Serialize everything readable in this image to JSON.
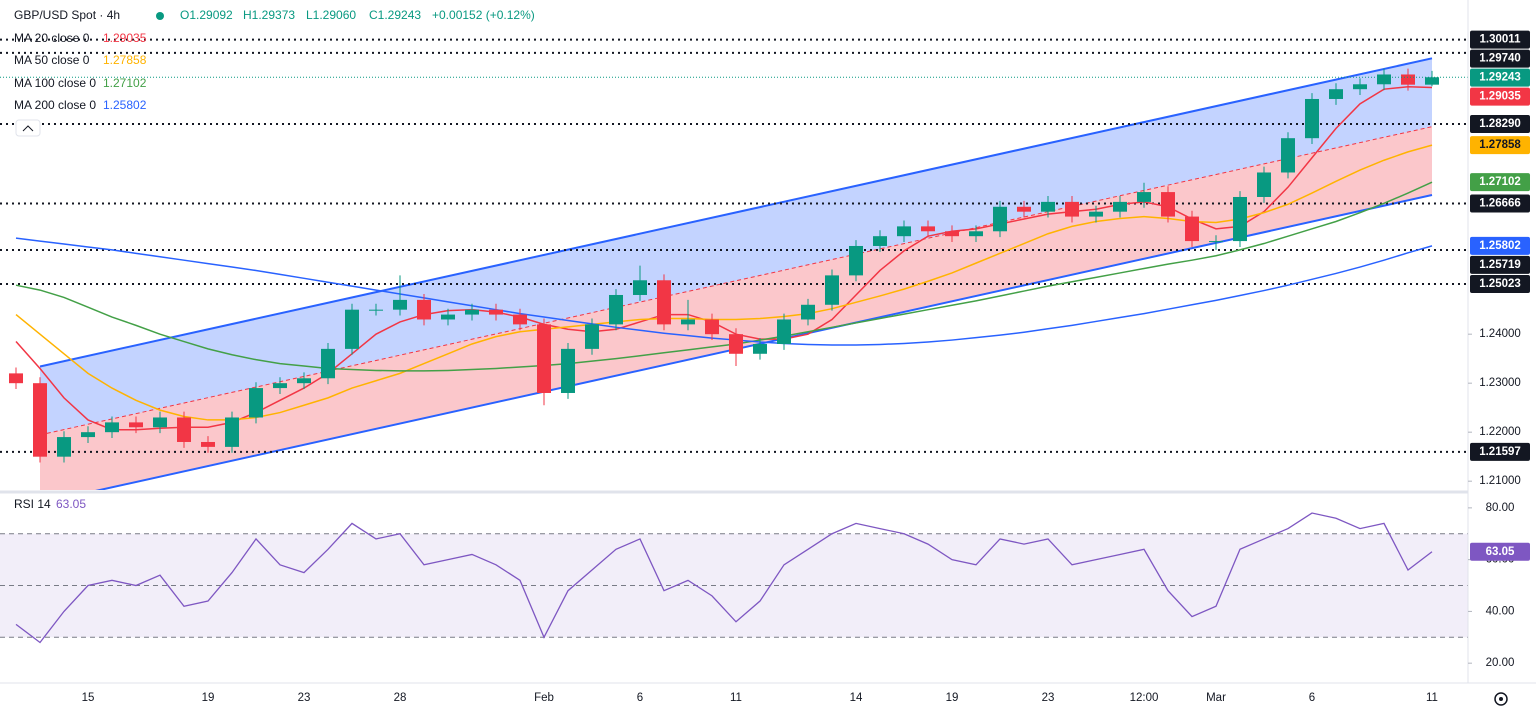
{
  "chart_data": {
    "type": "candlestick",
    "title": "GBP/USD Spot · 4h",
    "ohlc_text": [
      "O1.29092",
      "H1.29373",
      "L1.29060",
      "C1.29243",
      "+0.00152 (+0.12%)"
    ],
    "categories": [
      null,
      null,
      null,
      "15",
      null,
      null,
      null,
      null,
      "19",
      null,
      null,
      null,
      "23",
      null,
      null,
      null,
      "28",
      null,
      null,
      null,
      null,
      null,
      "Feb",
      null,
      null,
      null,
      "6",
      null,
      null,
      null,
      "11",
      null,
      null,
      null,
      null,
      "14",
      null,
      null,
      null,
      "19",
      null,
      null,
      null,
      "23",
      null,
      null,
      null,
      "12:00",
      null,
      null,
      "Mar",
      null,
      null,
      null,
      "6",
      null,
      null,
      null,
      null,
      "11"
    ],
    "open": [
      1.232,
      1.23,
      1.215,
      1.219,
      1.22,
      1.222,
      1.221,
      1.223,
      1.218,
      1.217,
      1.223,
      1.229,
      1.23,
      1.231,
      1.237,
      1.245,
      1.245,
      1.247,
      1.243,
      1.244,
      1.245,
      1.244,
      1.242,
      1.228,
      1.237,
      1.242,
      1.248,
      1.251,
      1.242,
      1.243,
      1.24,
      1.236,
      1.238,
      1.243,
      1.246,
      1.252,
      1.258,
      1.26,
      1.262,
      1.261,
      1.26,
      1.261,
      1.266,
      1.265,
      1.267,
      1.264,
      1.265,
      1.267,
      1.269,
      1.264,
      1.259,
      1.259,
      1.268,
      1.273,
      1.28,
      1.288,
      1.29,
      1.291,
      1.293,
      1.29092
    ],
    "high": [
      1.2332,
      1.2312,
      1.2202,
      1.2212,
      1.2232,
      1.2232,
      1.2242,
      1.2242,
      1.2192,
      1.2242,
      1.2302,
      1.2312,
      1.2322,
      1.2382,
      1.2462,
      1.2462,
      1.252,
      1.2482,
      1.2452,
      1.2462,
      1.2462,
      1.2452,
      1.2432,
      1.2382,
      1.2432,
      1.2492,
      1.254,
      1.2522,
      1.247,
      1.2442,
      1.2412,
      1.2392,
      1.2442,
      1.2472,
      1.2532,
      1.2592,
      1.2612,
      1.2632,
      1.2632,
      1.2622,
      1.2622,
      1.2672,
      1.2672,
      1.2682,
      1.2682,
      1.2662,
      1.2682,
      1.2709,
      1.2702,
      1.2652,
      1.2602,
      1.2692,
      1.2742,
      1.2812,
      1.2892,
      1.2912,
      1.2922,
      1.2942,
      1.2942,
      1.29373
    ],
    "low": [
      1.2288,
      1.2138,
      1.2138,
      1.2178,
      1.2188,
      1.2198,
      1.2198,
      1.2168,
      1.2158,
      1.2158,
      1.2218,
      1.2278,
      1.2288,
      1.2298,
      1.2358,
      1.2438,
      1.2438,
      1.2418,
      1.2418,
      1.2428,
      1.2428,
      1.2408,
      1.2255,
      1.2268,
      1.2358,
      1.2408,
      1.2468,
      1.2408,
      1.2408,
      1.2388,
      1.2335,
      1.2348,
      1.2368,
      1.2418,
      1.2448,
      1.2508,
      1.2568,
      1.2588,
      1.2598,
      1.2588,
      1.2588,
      1.2598,
      1.2638,
      1.2638,
      1.2628,
      1.2628,
      1.2638,
      1.2658,
      1.2628,
      1.2578,
      1.2572,
      1.2578,
      1.2668,
      1.2718,
      1.2788,
      1.2868,
      1.2888,
      1.2898,
      1.2897,
      1.2906
    ],
    "close": [
      1.23,
      1.215,
      1.219,
      1.22,
      1.222,
      1.221,
      1.223,
      1.218,
      1.217,
      1.223,
      1.229,
      1.23,
      1.231,
      1.237,
      1.245,
      1.245,
      1.247,
      1.243,
      1.244,
      1.245,
      1.244,
      1.242,
      1.228,
      1.237,
      1.242,
      1.248,
      1.251,
      1.242,
      1.243,
      1.24,
      1.236,
      1.238,
      1.243,
      1.246,
      1.252,
      1.258,
      1.26,
      1.262,
      1.261,
      1.26,
      1.261,
      1.266,
      1.265,
      1.267,
      1.264,
      1.265,
      1.267,
      1.269,
      1.264,
      1.259,
      1.259,
      1.268,
      1.273,
      1.28,
      1.288,
      1.29,
      1.291,
      1.293,
      1.29092,
      1.29243
    ],
    "up_color": "#089981",
    "down_color": "#f23645",
    "series": [
      {
        "name": "MA 20 close 0",
        "color": "#f23645",
        "values": [
          1.2385,
          1.233,
          1.227,
          1.2225,
          1.2205,
          1.2205,
          1.2208,
          1.221,
          1.221,
          1.222,
          1.224,
          1.2265,
          1.229,
          1.232,
          1.236,
          1.24,
          1.2425,
          1.244,
          1.2448,
          1.245,
          1.2445,
          1.2435,
          1.242,
          1.241,
          1.2405,
          1.241,
          1.2425,
          1.244,
          1.244,
          1.2425,
          1.24,
          1.239,
          1.239,
          1.24,
          1.243,
          1.248,
          1.253,
          1.257,
          1.26,
          1.261,
          1.2615,
          1.2625,
          1.2635,
          1.2645,
          1.265,
          1.2655,
          1.2665,
          1.267,
          1.266,
          1.2635,
          1.2615,
          1.262,
          1.265,
          1.27,
          1.276,
          1.282,
          1.287,
          1.29,
          1.2905,
          1.29035
        ]
      },
      {
        "name": "MA 50 close 0",
        "color": "#ffb300",
        "values": [
          1.244,
          1.24,
          1.236,
          1.232,
          1.229,
          1.2265,
          1.2245,
          1.2232,
          1.2225,
          1.2225,
          1.223,
          1.224,
          1.2255,
          1.227,
          1.229,
          1.2305,
          1.232,
          1.234,
          1.236,
          1.238,
          1.2395,
          1.2405,
          1.241,
          1.2415,
          1.242,
          1.2425,
          1.243,
          1.2432,
          1.2432,
          1.243,
          1.243,
          1.2432,
          1.2436,
          1.2442,
          1.2452,
          1.2465,
          1.2478,
          1.2492,
          1.2508,
          1.2525,
          1.2545,
          1.2565,
          1.2585,
          1.2605,
          1.262,
          1.263,
          1.2636,
          1.264,
          1.2636,
          1.263,
          1.2628,
          1.2635,
          1.2648,
          1.2665,
          1.2688,
          1.2712,
          1.2735,
          1.2755,
          1.2772,
          1.27858
        ]
      },
      {
        "name": "MA 100 close 0",
        "color": "#43a047",
        "values": [
          1.25,
          1.249,
          1.2475,
          1.2455,
          1.2435,
          1.2418,
          1.24,
          1.2385,
          1.237,
          1.2358,
          1.2348,
          1.234,
          1.2335,
          1.233,
          1.2328,
          1.2326,
          1.2325,
          1.2325,
          1.2326,
          1.2328,
          1.233,
          1.2333,
          1.2336,
          1.234,
          1.2345,
          1.235,
          1.2356,
          1.2362,
          1.2368,
          1.2374,
          1.238,
          1.2388,
          1.2396,
          1.2405,
          1.2414,
          1.2423,
          1.2432,
          1.2441,
          1.245,
          1.2459,
          1.2468,
          1.2478,
          1.2488,
          1.2498,
          1.2507,
          1.2516,
          1.2525,
          1.2534,
          1.2543,
          1.2551,
          1.256,
          1.2572,
          1.2585,
          1.26,
          1.2615,
          1.263,
          1.2648,
          1.2667,
          1.2688,
          1.27102
        ]
      },
      {
        "name": "MA 200 close 0",
        "color": "#2962ff",
        "values": [
          1.2596,
          1.259,
          1.2584,
          1.2578,
          1.2572,
          1.2565,
          1.2558,
          1.2551,
          1.2544,
          1.2537,
          1.253,
          1.2522,
          1.2514,
          1.2506,
          1.2498,
          1.249,
          1.2482,
          1.2474,
          1.2466,
          1.2458,
          1.245,
          1.2442,
          1.2435,
          1.2428,
          1.2421,
          1.2414,
          1.2408,
          1.2402,
          1.2397,
          1.2392,
          1.2388,
          1.2384,
          1.2381,
          1.2379,
          1.2378,
          1.2378,
          1.2379,
          1.2381,
          1.2384,
          1.2388,
          1.2393,
          1.2398,
          1.2404,
          1.2411,
          1.2418,
          1.2426,
          1.2434,
          1.2442,
          1.2451,
          1.246,
          1.2469,
          1.2479,
          1.2489,
          1.25,
          1.2512,
          1.2524,
          1.2537,
          1.2551,
          1.2566,
          1.25802
        ]
      }
    ],
    "channel_upper": [
      1.2334,
      1.2963
    ],
    "channel_lower": [
      1.2055,
      1.2684
    ],
    "levels": [
      {
        "value": 1.30011,
        "label": "1.30011"
      },
      {
        "value": 1.2974,
        "label": "1.29740"
      },
      {
        "value": 1.2829,
        "label": "1.28290"
      },
      {
        "value": 1.26666,
        "label": "1.26666"
      },
      {
        "value": 1.25719,
        "label": "1.25719"
      },
      {
        "value": 1.25023,
        "label": "1.25023"
      },
      {
        "value": 1.21597,
        "label": "1.21597"
      }
    ],
    "ylim": [
      1.2082,
      1.3082
    ],
    "yticks": [
      {
        "value": 1.21,
        "label": "1.21000"
      },
      {
        "value": 1.22,
        "label": "1.22000"
      },
      {
        "value": 1.23,
        "label": "1.23000"
      },
      {
        "value": 1.24,
        "label": "1.24000"
      }
    ],
    "rsi": {
      "name": "RSI 14",
      "color": "#7e57c2",
      "values": [
        35,
        28,
        40,
        50,
        52,
        50,
        54,
        42,
        44,
        55,
        68,
        58,
        55,
        64,
        74,
        68,
        70,
        58,
        60,
        62,
        58,
        52,
        30,
        48,
        56,
        64,
        68,
        48,
        52,
        46,
        36,
        44,
        58,
        64,
        70,
        74,
        72,
        70,
        66,
        60,
        58,
        68,
        66,
        68,
        58,
        60,
        62,
        64,
        48,
        38,
        42,
        64,
        68,
        72,
        78,
        76,
        72,
        74,
        56,
        63.05
      ],
      "ylim": [
        13.5,
        84.2
      ],
      "yticks": [
        {
          "value": 80,
          "label": "80.00"
        },
        {
          "value": 60,
          "label": "60.00"
        },
        {
          "value": 40,
          "label": "40.00"
        },
        {
          "value": 20,
          "label": "20.00"
        }
      ],
      "bands": [
        30,
        50,
        70
      ]
    }
  }
}
